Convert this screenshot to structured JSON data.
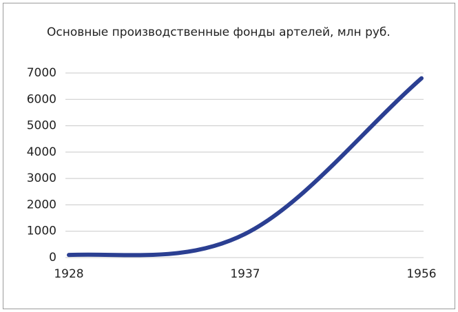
{
  "chart_data": {
    "type": "line",
    "title": "Основные производственные фонды артелей, млн руб.",
    "categories": [
      "1928",
      "1937",
      "1956"
    ],
    "series": [
      {
        "name": "Основные производственные фонды",
        "color": "#2b3f92",
        "values": [
          100,
          900,
          6800
        ]
      }
    ],
    "ylim": [
      0,
      7000
    ],
    "yticks": [
      0,
      1000,
      2000,
      3000,
      4000,
      5000,
      6000,
      7000
    ],
    "grid": true
  }
}
